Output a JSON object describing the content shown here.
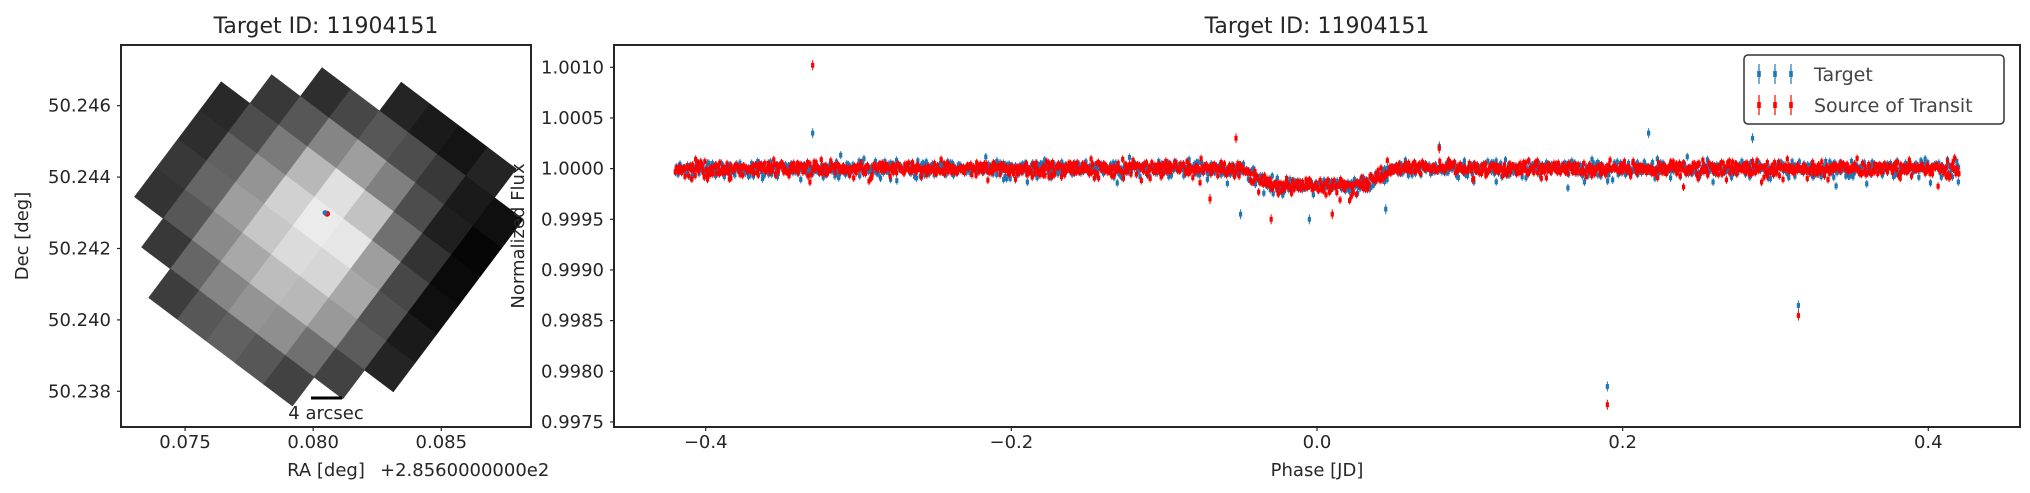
{
  "chart_data": [
    {
      "type": "heatmap",
      "title": "Target ID: 11904151",
      "xlabel": "RA [deg]",
      "ylabel": "Dec [deg]",
      "x_offset_text": "+2.8560000000e2",
      "xlim": [
        0.0725,
        0.0885
      ],
      "ylim": [
        50.237,
        50.2477
      ],
      "xticks": [
        0.075,
        0.08,
        0.085
      ],
      "xtick_labels": [
        "0.075",
        "0.080",
        "0.085"
      ],
      "yticks": [
        50.238,
        50.24,
        50.242,
        50.244,
        50.246
      ],
      "ytick_labels": [
        "50.238",
        "50.240",
        "50.242",
        "50.244",
        "50.246"
      ],
      "colormap": "gray",
      "scalebar_label": "4 arcsec",
      "target_marker": {
        "ra": 0.0805,
        "dec": 50.243
      },
      "marker_colors": {
        "target": "#1f77b4",
        "source": "#ff0000"
      },
      "grid_rotation_deg": 37,
      "pixel_grid": [
        [
          null,
          null,
          null,
          null,
          0.14,
          0.1,
          0.08,
          0.14,
          null
        ],
        [
          null,
          null,
          0.18,
          0.28,
          0.34,
          0.3,
          0.22,
          0.1,
          0.06
        ],
        [
          null,
          0.22,
          0.34,
          0.52,
          0.62,
          0.5,
          0.3,
          0.12,
          0.02
        ],
        [
          0.16,
          0.3,
          0.48,
          0.72,
          0.88,
          0.76,
          0.44,
          0.2,
          0.04
        ],
        [
          0.18,
          0.38,
          0.58,
          0.82,
          0.92,
          0.9,
          0.62,
          0.28,
          0.06
        ],
        [
          0.22,
          0.4,
          0.62,
          0.78,
          0.86,
          0.84,
          0.66,
          0.32,
          0.1
        ],
        [
          0.2,
          0.34,
          0.54,
          0.66,
          0.74,
          0.72,
          0.6,
          0.36,
          0.14
        ],
        [
          null,
          0.22,
          0.4,
          0.52,
          0.58,
          0.56,
          0.44,
          0.26,
          null
        ],
        [
          null,
          null,
          0.24,
          0.34,
          0.38,
          0.34,
          0.26,
          null,
          null
        ]
      ]
    },
    {
      "type": "scatter",
      "title": "Target ID: 11904151",
      "xlabel": "Phase [JD]",
      "ylabel": "Normalized Flux",
      "xlim": [
        -0.46,
        0.46
      ],
      "ylim": [
        0.99745,
        1.00122
      ],
      "xticks": [
        -0.4,
        -0.2,
        0.0,
        0.2,
        0.4
      ],
      "xtick_labels": [
        "−0.4",
        "−0.2",
        "0.0",
        "0.2",
        "0.4"
      ],
      "yticks": [
        0.9975,
        0.998,
        0.9985,
        0.999,
        0.9995,
        1.0,
        1.0005,
        1.001
      ],
      "ytick_labels": [
        "0.9975",
        "0.9980",
        "0.9985",
        "0.9990",
        "0.9995",
        "1.0000",
        "1.0005",
        "1.0010"
      ],
      "legend_position": "top-right",
      "error_bars": true,
      "transit": {
        "center": 0.0,
        "half_width": 0.05,
        "depth": 0.00017,
        "x_range": [
          -0.42,
          0.42
        ],
        "baseline": 1.0
      },
      "series": [
        {
          "name": "Target",
          "color": "#1f77b4",
          "outliers": [
            {
              "x": -0.33,
              "y": 1.00035
            },
            {
              "x": 0.08,
              "y": 1.00022
            },
            {
              "x": 0.217,
              "y": 1.00035
            },
            {
              "x": 0.285,
              "y": 1.0003
            },
            {
              "x": 0.19,
              "y": 0.99785
            },
            {
              "x": 0.315,
              "y": 0.99865
            },
            {
              "x": -0.05,
              "y": 0.99955
            },
            {
              "x": -0.005,
              "y": 0.9995
            },
            {
              "x": 0.045,
              "y": 0.9996
            }
          ]
        },
        {
          "name": "Source of Transit",
          "color": "#ff0000",
          "outliers": [
            {
              "x": -0.33,
              "y": 1.00102
            },
            {
              "x": -0.053,
              "y": 1.0003
            },
            {
              "x": 0.08,
              "y": 1.0002
            },
            {
              "x": 0.19,
              "y": 0.99767
            },
            {
              "x": 0.315,
              "y": 0.99855
            },
            {
              "x": -0.03,
              "y": 0.9995
            },
            {
              "x": 0.01,
              "y": 0.99955
            },
            {
              "x": -0.07,
              "y": 0.9997
            }
          ]
        }
      ]
    }
  ]
}
